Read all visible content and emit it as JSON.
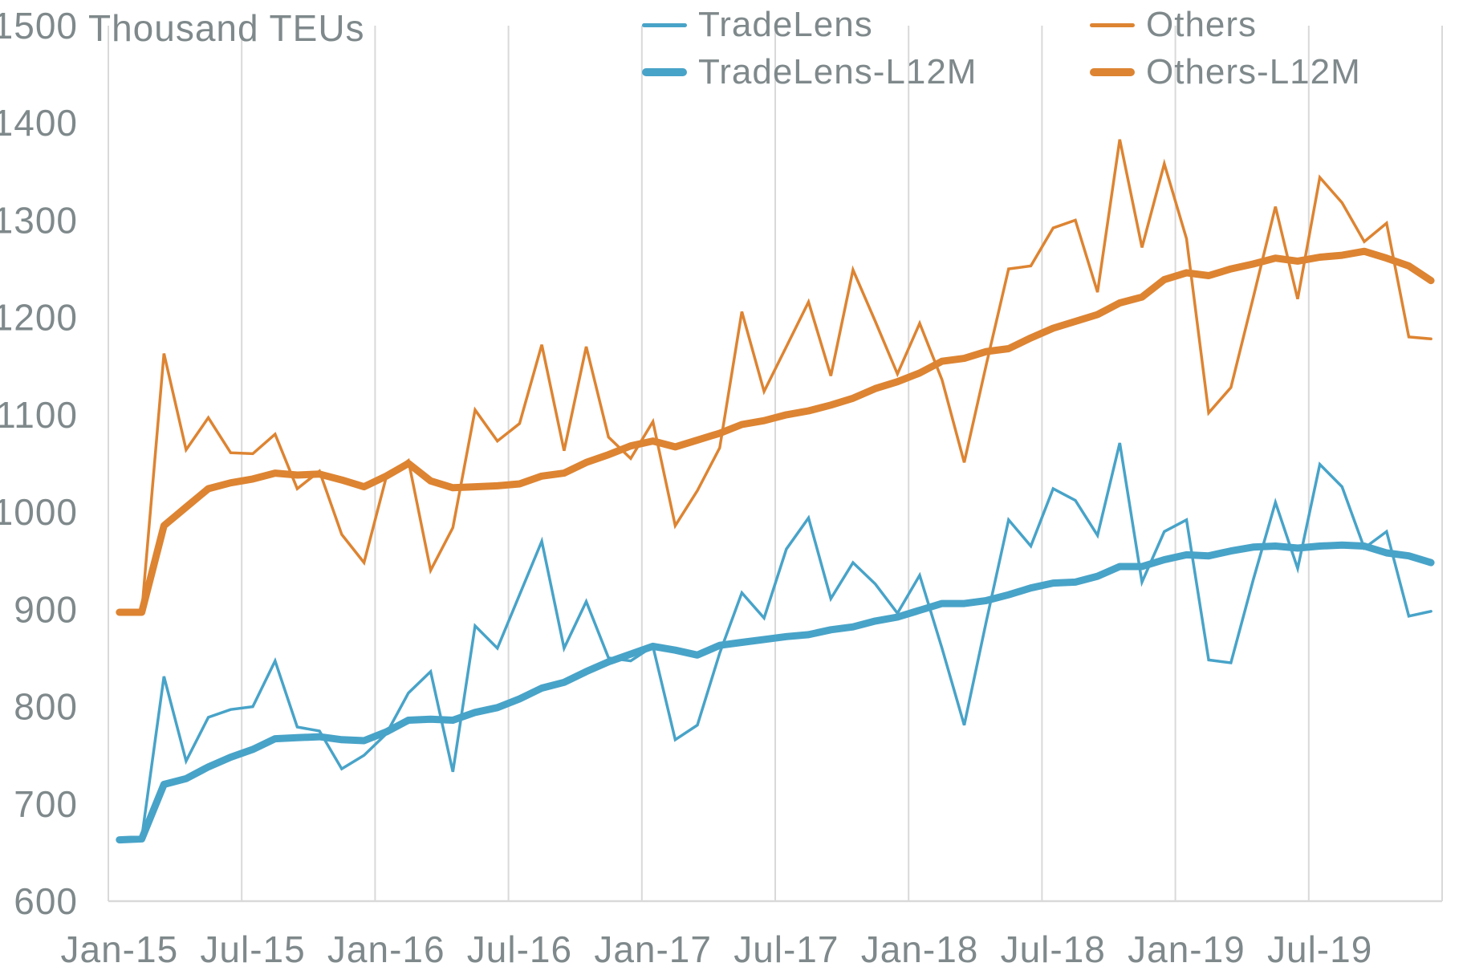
{
  "title": "Thousand TEUs",
  "colors": {
    "tradelens": "#48A3C8",
    "others": "#DD8432",
    "text": "#7F898B",
    "grid": "#D9D9D9"
  },
  "legend": {
    "items": [
      {
        "label": "TradeLens",
        "series": "tradelens",
        "style": "thin"
      },
      {
        "label": "Others",
        "series": "others",
        "style": "thin"
      },
      {
        "label": "TradeLens-L12M",
        "series": "tradelens",
        "style": "thick"
      },
      {
        "label": "Others-L12M",
        "series": "others",
        "style": "thick"
      }
    ]
  },
  "chart_data": {
    "type": "line",
    "title": "Thousand TEUs",
    "xlabel": "",
    "ylabel": "Thousand TEUs",
    "grid": "vertical-only",
    "legend_position": "top-center",
    "y_axis": {
      "min": 600,
      "max": 1500,
      "step": 100,
      "ticks": [
        600,
        700,
        800,
        900,
        1000,
        1100,
        1200,
        1300,
        1400,
        1500
      ]
    },
    "x_tick_labels": [
      "Jan-15",
      "Jul-15",
      "Jan-16",
      "Jul-16",
      "Jan-17",
      "Jul-17",
      "Jan-18",
      "Jul-18",
      "Jan-19",
      "Jul-19"
    ],
    "categories": [
      "Jan-15",
      "Feb-15",
      "Mar-15",
      "Apr-15",
      "May-15",
      "Jun-15",
      "Jul-15",
      "Aug-15",
      "Sep-15",
      "Oct-15",
      "Nov-15",
      "Dec-15",
      "Jan-16",
      "Feb-16",
      "Mar-16",
      "Apr-16",
      "May-16",
      "Jun-16",
      "Jul-16",
      "Aug-16",
      "Sep-16",
      "Oct-16",
      "Nov-16",
      "Dec-16",
      "Jan-17",
      "Feb-17",
      "Mar-17",
      "Apr-17",
      "May-17",
      "Jun-17",
      "Jul-17",
      "Aug-17",
      "Sep-17",
      "Oct-17",
      "Nov-17",
      "Dec-17",
      "Jan-18",
      "Feb-18",
      "Mar-18",
      "Apr-18",
      "May-18",
      "Jun-18",
      "Jul-18",
      "Aug-18",
      "Sep-18",
      "Oct-18",
      "Nov-18",
      "Dec-18",
      "Jan-19",
      "Feb-19",
      "Mar-19",
      "Apr-19",
      "May-19",
      "Jun-19",
      "Jul-19",
      "Aug-19",
      "Sep-19",
      "Oct-19",
      "Nov-19",
      "Dec-19"
    ],
    "series": [
      {
        "name": "TradeLens",
        "color": "#48A3C8",
        "width": 3.5,
        "join": "miter",
        "values": [
          663,
          665,
          831,
          744,
          789,
          797,
          800,
          847,
          779,
          775,
          736,
          750,
          772,
          814,
          836,
          733,
          883,
          860,
          915,
          970,
          860,
          908,
          850,
          847,
          862,
          766,
          781,
          855,
          917,
          891,
          962,
          994,
          911,
          948,
          926,
          896,
          935,
          860,
          781,
          888,
          992,
          965,
          1024,
          1012,
          976,
          1071,
          928,
          980,
          992,
          848,
          845,
          930,
          1010,
          942,
          1049,
          1026,
          963,
          980,
          893,
          898
        ]
      },
      {
        "name": "Others",
        "color": "#DD8432",
        "width": 3.5,
        "join": "miter",
        "values": [
          897,
          897,
          1163,
          1064,
          1097,
          1061,
          1060,
          1080,
          1024,
          1042,
          977,
          948,
          1036,
          1053,
          940,
          984,
          1105,
          1073,
          1091,
          1172,
          1063,
          1170,
          1077,
          1055,
          1093,
          986,
          1022,
          1066,
          1206,
          1124,
          1170,
          1216,
          1140,
          1249,
          1196,
          1142,
          1194,
          1136,
          1051,
          1152,
          1250,
          1253,
          1292,
          1300,
          1226,
          1383,
          1272,
          1358,
          1281,
          1102,
          1128,
          1220,
          1314,
          1219,
          1344,
          1318,
          1278,
          1297,
          1180,
          1178
        ]
      },
      {
        "name": "TradeLens-L12M",
        "color": "#48A3C8",
        "width": 9,
        "join": "round",
        "values": [
          663,
          664,
          720,
          726,
          738,
          748,
          756,
          767,
          768,
          769,
          766,
          765,
          774,
          786,
          787,
          786,
          794,
          799,
          808,
          819,
          825,
          836,
          846,
          854,
          862,
          858,
          853,
          863,
          866,
          869,
          872,
          874,
          879,
          882,
          888,
          892,
          899,
          906,
          906,
          909,
          915,
          922,
          927,
          928,
          934,
          944,
          944,
          951,
          956,
          955,
          960,
          964,
          965,
          963,
          965,
          966,
          965,
          958,
          955,
          948
        ]
      },
      {
        "name": "Others-L12M",
        "color": "#DD8432",
        "width": 9,
        "join": "round",
        "values": [
          897,
          897,
          986,
          1005,
          1024,
          1030,
          1034,
          1040,
          1038,
          1039,
          1033,
          1026,
          1037,
          1050,
          1032,
          1025,
          1026,
          1027,
          1029,
          1037,
          1040,
          1051,
          1059,
          1068,
          1073,
          1067,
          1074,
          1081,
          1090,
          1094,
          1100,
          1104,
          1110,
          1117,
          1127,
          1134,
          1143,
          1155,
          1158,
          1165,
          1168,
          1179,
          1189,
          1196,
          1203,
          1215,
          1221,
          1239,
          1246,
          1243,
          1250,
          1255,
          1261,
          1258,
          1262,
          1264,
          1268,
          1261,
          1253,
          1238
        ]
      }
    ]
  }
}
